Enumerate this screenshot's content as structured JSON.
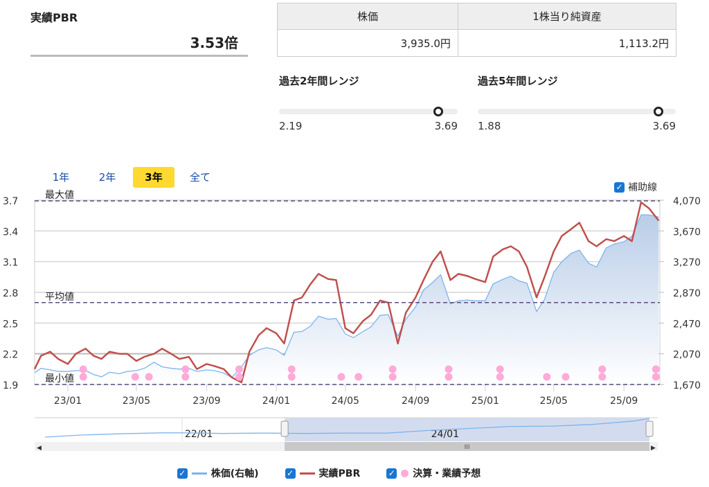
{
  "summary": {
    "pbr_label": "実績PBR",
    "pbr_value": "3.53倍"
  },
  "info_table": {
    "headers": [
      "株価",
      "1株当り純資産"
    ],
    "values": [
      "3,935.0円",
      "1,113.2円"
    ]
  },
  "ranges": [
    {
      "title": "過去2年間レンジ",
      "min": "2.19",
      "max": "3.69",
      "current": 3.53
    },
    {
      "title": "過去5年間レンジ",
      "min": "1.88",
      "max": "3.69",
      "current": 3.53
    }
  ],
  "period_tabs": [
    {
      "label": "1年"
    },
    {
      "label": "2年"
    },
    {
      "label": "3年",
      "active": true
    },
    {
      "label": "全て"
    }
  ],
  "aux_lines": {
    "label": "補助線",
    "checked": true
  },
  "colors": {
    "price": "#7db4ec",
    "pbr": "#c0504d",
    "events": "#ffaad8",
    "accent": "#1976d2",
    "tab_active": "#ffd92f",
    "ref_line": "#5b4a7c"
  },
  "chart_data": {
    "type": "line",
    "left_axis": {
      "ticks": [
        "3.7",
        "3.4",
        "3.1",
        "2.8",
        "2.5",
        "2.2",
        "1.9"
      ],
      "range": [
        1.9,
        3.7
      ]
    },
    "right_axis": {
      "ticks": [
        "4,070",
        "3,670",
        "3,270",
        "2,870",
        "2,470",
        "2,070",
        "1,670"
      ],
      "range": [
        1670,
        4070
      ]
    },
    "x_ticks": [
      {
        "label": "23/01",
        "date": "2023-01-01"
      },
      {
        "label": "23/05",
        "date": "2023-05-01"
      },
      {
        "label": "23/09",
        "date": "2023-09-01"
      },
      {
        "label": "24/01",
        "date": "2024-01-01"
      },
      {
        "label": "24/05",
        "date": "2024-05-01"
      },
      {
        "label": "24/09",
        "date": "2024-09-01"
      },
      {
        "label": "25/01",
        "date": "2025-01-01"
      },
      {
        "label": "25/05",
        "date": "2025-05-01"
      },
      {
        "label": "25/09",
        "date": "2025-09-01"
      }
    ],
    "reference_lines": [
      {
        "label": "最大値",
        "value": 3.69
      },
      {
        "label": "平均値",
        "value": 2.7
      },
      {
        "label": "最小値",
        "value": 1.9
      }
    ],
    "grid": true,
    "dates": [
      "2022-11-01",
      "2022-11-15",
      "2022-12-01",
      "2022-12-15",
      "2023-01-01",
      "2023-01-15",
      "2023-02-01",
      "2023-02-15",
      "2023-03-01",
      "2023-03-15",
      "2023-04-01",
      "2023-04-15",
      "2023-05-01",
      "2023-05-15",
      "2023-06-01",
      "2023-06-15",
      "2023-07-01",
      "2023-07-15",
      "2023-08-01",
      "2023-08-15",
      "2023-09-01",
      "2023-09-15",
      "2023-10-01",
      "2023-10-15",
      "2023-11-01",
      "2023-11-15",
      "2023-12-01",
      "2023-12-15",
      "2024-01-01",
      "2024-01-15",
      "2024-02-01",
      "2024-02-15",
      "2024-03-01",
      "2024-03-15",
      "2024-04-01",
      "2024-04-15",
      "2024-05-01",
      "2024-05-15",
      "2024-06-01",
      "2024-06-15",
      "2024-07-01",
      "2024-07-15",
      "2024-08-01",
      "2024-08-15",
      "2024-09-01",
      "2024-09-15",
      "2024-10-01",
      "2024-10-15",
      "2024-11-01",
      "2024-11-15",
      "2024-12-01",
      "2024-12-15",
      "2025-01-01",
      "2025-01-15",
      "2025-02-01",
      "2025-02-15",
      "2025-03-01",
      "2025-03-15",
      "2025-04-01",
      "2025-04-15",
      "2025-05-01",
      "2025-05-15",
      "2025-06-01",
      "2025-06-15",
      "2025-07-01",
      "2025-07-15",
      "2025-08-01",
      "2025-08-15",
      "2025-09-01",
      "2025-09-15",
      "2025-10-01",
      "2025-10-15",
      "2025-11-01"
    ],
    "series": [
      {
        "name": "実績PBR",
        "axis": "left",
        "values": [
          2.05,
          2.18,
          2.22,
          2.15,
          2.1,
          2.2,
          2.25,
          2.18,
          2.15,
          2.22,
          2.2,
          2.2,
          2.13,
          2.17,
          2.2,
          2.25,
          2.2,
          2.15,
          2.17,
          2.05,
          2.1,
          2.08,
          2.05,
          1.97,
          1.92,
          2.22,
          2.38,
          2.45,
          2.4,
          2.3,
          2.72,
          2.75,
          2.88,
          2.98,
          2.93,
          2.92,
          2.45,
          2.4,
          2.52,
          2.58,
          2.72,
          2.7,
          2.3,
          2.6,
          2.75,
          2.92,
          3.1,
          3.2,
          2.92,
          2.98,
          2.96,
          2.93,
          2.9,
          3.15,
          3.22,
          3.25,
          3.2,
          3.05,
          2.75,
          2.95,
          3.2,
          3.35,
          3.42,
          3.48,
          3.3,
          3.25,
          3.32,
          3.3,
          3.35,
          3.3,
          3.68,
          3.62,
          3.5
        ]
      },
      {
        "name": "株価(右軸)",
        "axis": "right",
        "values": [
          1823,
          1880,
          1860,
          1840,
          1840,
          1850,
          1850,
          1800,
          1770,
          1830,
          1810,
          1840,
          1850,
          1880,
          1960,
          1900,
          1880,
          1870,
          1880,
          1840,
          1860,
          1850,
          1820,
          1760,
          1900,
          2050,
          2120,
          2150,
          2120,
          2050,
          2350,
          2360,
          2430,
          2560,
          2520,
          2530,
          2330,
          2280,
          2360,
          2420,
          2570,
          2580,
          2300,
          2520,
          2680,
          2900,
          3000,
          3100,
          2720,
          2760,
          2770,
          2760,
          2760,
          2980,
          3040,
          3080,
          3020,
          2990,
          2620,
          2780,
          3130,
          3270,
          3380,
          3420,
          3250,
          3200,
          3450,
          3500,
          3530,
          3600,
          3880,
          3880,
          3850
        ]
      }
    ],
    "events": {
      "name": "決算・業績予想",
      "items": [
        {
          "date": "2023-01-28",
          "count": 2
        },
        {
          "date": "2023-04-29",
          "count": 1
        },
        {
          "date": "2023-05-23",
          "count": 1
        },
        {
          "date": "2023-07-26",
          "count": 2
        },
        {
          "date": "2023-10-28",
          "count": 2
        },
        {
          "date": "2024-01-28",
          "count": 2
        },
        {
          "date": "2024-04-24",
          "count": 1
        },
        {
          "date": "2024-05-24",
          "count": 1
        },
        {
          "date": "2024-07-23",
          "count": 2
        },
        {
          "date": "2024-10-29",
          "count": 2
        },
        {
          "date": "2025-01-27",
          "count": 2
        },
        {
          "date": "2025-04-19",
          "count": 1
        },
        {
          "date": "2025-05-22",
          "count": 1
        },
        {
          "date": "2025-07-25",
          "count": 2
        },
        {
          "date": "2025-10-27",
          "count": 2
        }
      ]
    },
    "navigator": {
      "ticks": [
        {
          "label": "22/01",
          "date": "2022-01-01"
        },
        {
          "label": "24/01",
          "date": "2024-01-01"
        }
      ],
      "selection": [
        "2022-11-01",
        "2025-11-01"
      ],
      "dates": [
        "2020-11-01",
        "2021-03-01",
        "2021-07-01",
        "2021-11-01",
        "2022-01-01",
        "2022-05-01",
        "2022-09-01",
        "2023-01-01",
        "2023-05-01",
        "2023-09-01",
        "2024-01-01",
        "2024-05-01",
        "2024-09-01",
        "2025-01-01",
        "2025-05-01",
        "2025-09-01",
        "2025-11-01"
      ],
      "values": [
        1100,
        1400,
        1600,
        1750,
        1750,
        1650,
        1700,
        1650,
        1700,
        1700,
        2100,
        2400,
        2700,
        2750,
        3000,
        3500,
        3900
      ]
    }
  },
  "legend": [
    {
      "label": "株価(右軸)",
      "checked": true
    },
    {
      "label": "実績PBR",
      "checked": true
    },
    {
      "label": "決算・業績予想",
      "checked": true
    }
  ]
}
